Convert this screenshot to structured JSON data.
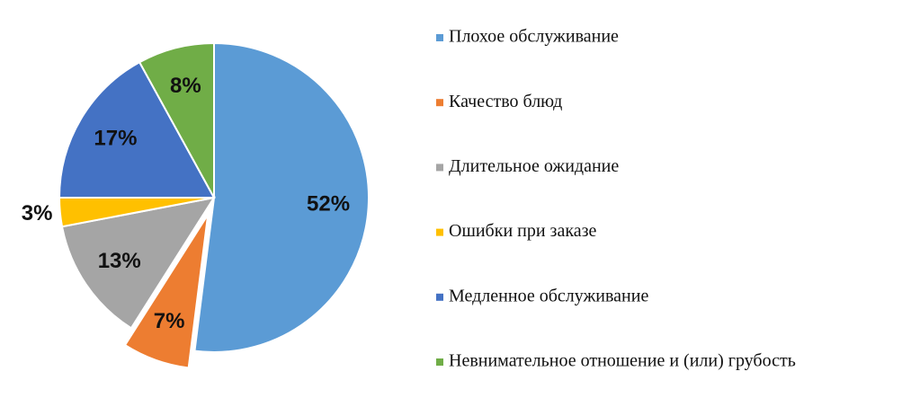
{
  "chart_data": {
    "type": "pie",
    "categories": [
      "Плохое обслуживание",
      "Качество блюд",
      "Длительное ожидание",
      "Ошибки при заказе",
      "Медленное обслуживание",
      "Невнимательное отношение и (или) грубость"
    ],
    "values": [
      52,
      7,
      13,
      3,
      17,
      8
    ],
    "value_labels": [
      "52%",
      "7%",
      "13%",
      "3%",
      "17%",
      "8%"
    ],
    "colors": [
      "#5b9bd5",
      "#ed7d31",
      "#a5a5a5",
      "#ffc000",
      "#4472c4",
      "#70ad47"
    ],
    "explode": [
      false,
      true,
      false,
      false,
      false,
      false
    ],
    "legend": "right"
  }
}
